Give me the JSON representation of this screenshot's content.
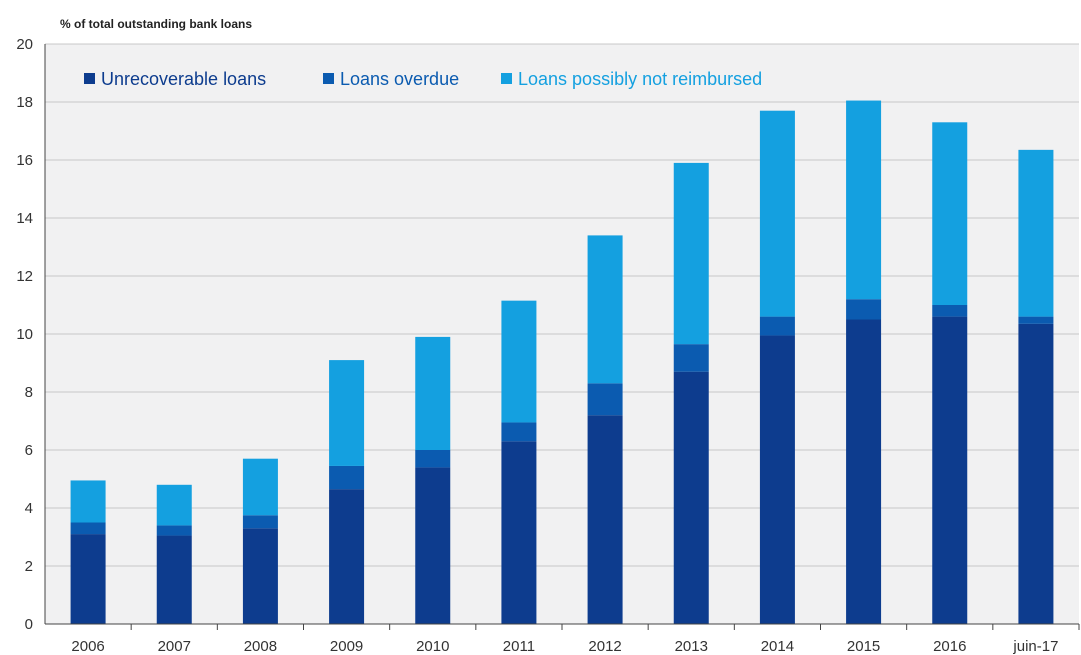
{
  "chart_data": {
    "type": "bar",
    "stacked": true,
    "ylabel": "% of total outstanding bank loans",
    "ylim": [
      0,
      20
    ],
    "yticks": [
      0,
      2,
      4,
      6,
      8,
      10,
      12,
      14,
      16,
      18,
      20
    ],
    "grid": "horizontal",
    "legend_position": "top-left",
    "categories": [
      "2006",
      "2007",
      "2008",
      "2009",
      "2010",
      "2011",
      "2012",
      "2013",
      "2014",
      "2015",
      "2016",
      "juin-17"
    ],
    "series": [
      {
        "name": "Unrecoverable loans",
        "color": "#0d3c8e",
        "values": [
          3.1,
          3.05,
          3.3,
          4.65,
          5.4,
          6.3,
          7.2,
          8.7,
          9.95,
          10.5,
          10.6,
          10.35
        ]
      },
      {
        "name": "Loans overdue",
        "color": "#0b5bb0",
        "values": [
          0.4,
          0.35,
          0.45,
          0.8,
          0.6,
          0.65,
          1.1,
          0.95,
          0.65,
          0.7,
          0.4,
          0.25
        ]
      },
      {
        "name": "Loans possibly not reimbursed",
        "color": "#14a0e0",
        "values": [
          1.45,
          1.4,
          1.95,
          3.65,
          3.9,
          4.2,
          5.1,
          6.25,
          7.1,
          6.85,
          6.3,
          5.75
        ]
      }
    ]
  }
}
